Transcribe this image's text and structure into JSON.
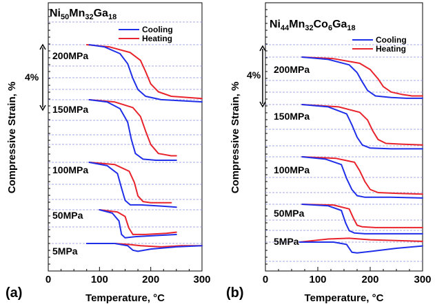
{
  "figure": {
    "x_ticks": [
      "0",
      "100",
      "200",
      "300"
    ],
    "colors": {
      "cooling": "#1f2ee8",
      "heating": "#e8232b",
      "grid": "#8a8ae0",
      "axis": "#000000"
    }
  },
  "chart_data": [
    {
      "type": "line",
      "panel_label": "(a)",
      "title": {
        "base": "Ni",
        "parts": [
          [
            "Ni",
            "50"
          ],
          [
            "Mn",
            "32"
          ],
          [
            "Ga",
            "18"
          ]
        ]
      },
      "xlabel": "Temperature, °C",
      "ylabel": "Compressive Strain, %",
      "xlim": [
        0,
        300
      ],
      "scale_bar_label": "4%",
      "legend": {
        "position": "top-right",
        "entries": [
          "Cooling",
          "Heating"
        ]
      },
      "grid": "horizontal-dashed",
      "series_sets": [
        {
          "stress": "200MPa",
          "cooling": {
            "x": [
              80,
              110,
              140,
              155,
              165,
              175,
              190,
              220,
              260,
              300
            ],
            "y": [
              0,
              -0.2,
              -0.8,
              -1.7,
              -3.0,
              -4.0,
              -4.6,
              -4.9,
              -5.0,
              -5.1
            ]
          },
          "heating": {
            "x": [
              75,
              120,
              160,
              180,
              190,
              200,
              215,
              240,
              270,
              300
            ],
            "y": [
              0,
              -0.2,
              -0.7,
              -1.4,
              -2.4,
              -3.5,
              -4.2,
              -4.6,
              -4.7,
              -4.8
            ]
          }
        },
        {
          "stress": "150MPa",
          "cooling": {
            "x": [
              80,
              115,
              140,
              155,
              162,
              170,
              185,
              210,
              250
            ],
            "y": [
              0,
              -0.2,
              -0.8,
              -2.0,
              -3.5,
              -4.8,
              -5.3,
              -5.4,
              -5.4
            ]
          },
          "heating": {
            "x": [
              80,
              130,
              165,
              180,
              190,
              200,
              215,
              240,
              250
            ],
            "y": [
              0,
              -0.2,
              -0.7,
              -1.5,
              -2.8,
              -4.0,
              -4.8,
              -5.0,
              -5.0
            ]
          }
        },
        {
          "stress": "100MPa",
          "cooling": {
            "x": [
              80,
              115,
              135,
              143,
              150,
              160,
              180,
              220,
              250
            ],
            "y": [
              0,
              -0.3,
              -1.0,
              -2.3,
              -3.4,
              -3.8,
              -3.8,
              -3.9,
              -4.0
            ]
          },
          "heating": {
            "x": [
              80,
              130,
              158,
              168,
              175,
              185,
              200,
              240
            ],
            "y": [
              0,
              -0.2,
              -0.8,
              -1.8,
              -3.0,
              -3.5,
              -3.6,
              -3.6
            ]
          }
        },
        {
          "stress": "50MPa",
          "cooling": {
            "x": [
              100,
              125,
              138,
              143,
              150,
              170,
              210,
              250
            ],
            "y": [
              0,
              -0.3,
              -1.0,
              -2.2,
              -2.5,
              -2.4,
              -2.3,
              -2.2
            ]
          },
          "heating": {
            "x": [
              100,
              135,
              150,
              157,
              165,
              190,
              230,
              250
            ],
            "y": [
              0,
              -0.2,
              -0.6,
              -1.6,
              -2.2,
              -2.2,
              -2.1,
              -2.0
            ]
          }
        },
        {
          "stress": "5MPa",
          "cooling": {
            "x": [
              75,
              130,
              155,
              165,
              175,
              200,
              250,
              300
            ],
            "y": [
              0,
              0,
              -0.2,
              -0.6,
              -0.7,
              -0.5,
              -0.3,
              -0.2
            ]
          },
          "heating": {
            "x": [
              75,
              130,
              160,
              180,
              220,
              260,
              300
            ],
            "y": [
              0,
              0,
              -0.1,
              -0.2,
              -0.3,
              -0.2,
              -0.2
            ]
          }
        }
      ]
    },
    {
      "type": "line",
      "panel_label": "(b)",
      "title": {
        "base": "Ni",
        "parts": [
          [
            "Ni",
            "44"
          ],
          [
            "Mn",
            "32"
          ],
          [
            "Co",
            "6"
          ],
          [
            "Ga",
            "18"
          ]
        ]
      },
      "xlabel": "Temperature, °C",
      "ylabel": "Compressive Strain, %",
      "xlim": [
        0,
        300
      ],
      "scale_bar_label": "4%",
      "legend": {
        "position": "top-right",
        "entries": [
          "Cooling",
          "Heating"
        ]
      },
      "grid": "horizontal-dashed",
      "series_sets": [
        {
          "stress": "200MPa",
          "cooling": {
            "x": [
              70,
              120,
              160,
              175,
              185,
              195,
              210,
              240,
              270,
              300
            ],
            "y": [
              0,
              -0.3,
              -1.0,
              -2.0,
              -3.2,
              -4.3,
              -5.0,
              -5.2,
              -5.3,
              -5.3
            ]
          },
          "heating": {
            "x": [
              70,
              130,
              180,
              200,
              215,
              225,
              240,
              260,
              280,
              300
            ],
            "y": [
              0,
              -0.2,
              -0.8,
              -1.6,
              -2.8,
              -3.8,
              -4.5,
              -4.8,
              -5.0,
              -5.0
            ]
          }
        },
        {
          "stress": "150MPa",
          "cooling": {
            "x": [
              70,
              120,
              155,
              165,
              175,
              185,
              200,
              240,
              300
            ],
            "y": [
              0,
              -0.3,
              -1.2,
              -2.6,
              -4.2,
              -5.2,
              -5.6,
              -5.7,
              -5.7
            ]
          },
          "heating": {
            "x": [
              70,
              140,
              180,
              195,
              205,
              215,
              230,
              260,
              300
            ],
            "y": [
              0,
              -0.3,
              -1.0,
              -2.0,
              -3.4,
              -4.5,
              -5.0,
              -5.1,
              -5.2
            ]
          }
        },
        {
          "stress": "100MPa",
          "cooling": {
            "x": [
              70,
              115,
              145,
              155,
              165,
              175,
              190,
              240,
              300
            ],
            "y": [
              0,
              -0.3,
              -1.0,
              -2.8,
              -4.2,
              -5.0,
              -5.2,
              -5.2,
              -5.3
            ]
          },
          "heating": {
            "x": [
              70,
              135,
              170,
              180,
              190,
              200,
              215,
              250,
              300
            ],
            "y": [
              0,
              -0.2,
              -0.7,
              -1.8,
              -3.2,
              -4.2,
              -4.6,
              -4.7,
              -4.8
            ]
          }
        },
        {
          "stress": "50MPa",
          "cooling": {
            "x": [
              70,
              120,
              145,
              153,
              160,
              170,
              190,
              240,
              300
            ],
            "y": [
              0,
              -0.2,
              -0.8,
              -2.4,
              -3.4,
              -3.7,
              -3.8,
              -3.8,
              -3.8
            ]
          },
          "heating": {
            "x": [
              70,
              130,
              160,
              168,
              175,
              185,
              210,
              250,
              300
            ],
            "y": [
              0,
              -0.1,
              -0.6,
              -1.8,
              -2.7,
              -2.9,
              -3.0,
              -3.0,
              -3.0
            ]
          }
        },
        {
          "stress": "5MPa",
          "cooling": {
            "x": [
              65,
              130,
              155,
              165,
              175,
              200,
              250,
              300
            ],
            "y": [
              0,
              0,
              -0.3,
              -1.3,
              -1.4,
              -1.2,
              -0.8,
              -0.5
            ]
          },
          "heating": {
            "x": [
              65,
              120,
              160,
              200,
              250,
              300
            ],
            "y": [
              0,
              0.4,
              0.5,
              0.3,
              0.2,
              0.1
            ]
          }
        }
      ]
    }
  ]
}
